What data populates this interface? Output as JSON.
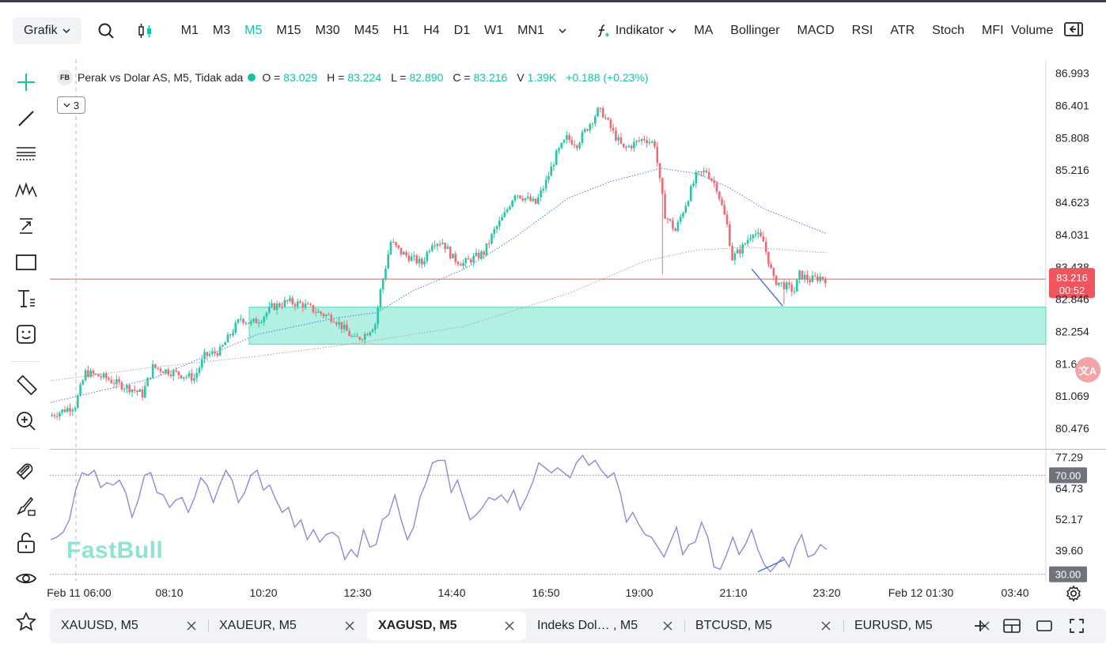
{
  "toolbar": {
    "chart_type_label": "Grafik",
    "timeframes": [
      "M1",
      "M3",
      "M5",
      "M15",
      "M30",
      "M45",
      "H1",
      "H4",
      "D1",
      "W1",
      "MN1"
    ],
    "active_timeframe": "M5",
    "indicator_label": "Indikator",
    "indicators": [
      "MA",
      "Bollinger",
      "MACD",
      "RSI",
      "ATR",
      "Stoch",
      "MFI"
    ],
    "overflow_item": "Volume"
  },
  "legend": {
    "badge": "FB",
    "symbol": "Perak vs Dolar AS, M5, Tidak ada",
    "o_label": "O =",
    "o_value": "83.029",
    "h_label": "H =",
    "h_value": "83.224",
    "l_label": "L =",
    "l_value": "82.890",
    "c_label": "C =",
    "c_value": "83.216",
    "v_label": "V",
    "v_value": "1.39K",
    "change": "+0.188 (+0.23%)",
    "collapsed_count": "3"
  },
  "price_badge": {
    "price": "83.216",
    "countdown": "00:52"
  },
  "watermark": "FastBull",
  "translate_badge": "文A",
  "chart_data": [
    {
      "type": "candlestick",
      "symbol": "Perak vs Dolar AS, M5",
      "y_ticks": [
        "86.993",
        "86.401",
        "85.808",
        "85.216",
        "84.623",
        "84.031",
        "83.438",
        "82.846",
        "82.254",
        "81.661",
        "81.069",
        "80.476"
      ],
      "ylim": [
        80.1,
        87.25
      ],
      "x_ticks": [
        "Feb 11 06:00",
        "08:10",
        "10:20",
        "12:30",
        "14:40",
        "16:50",
        "19:00",
        "21:10",
        "23:20",
        "Feb 12 01:30",
        "03:40"
      ],
      "last_price": 83.216,
      "support_zone": [
        82.02,
        82.7
      ],
      "price_path": [
        [
          0,
          80.7
        ],
        [
          10,
          80.9
        ],
        [
          14,
          81.5
        ],
        [
          22,
          81.4
        ],
        [
          26,
          81.3
        ],
        [
          32,
          81.2
        ],
        [
          36,
          81.1
        ],
        [
          40,
          81.6
        ],
        [
          48,
          81.5
        ],
        [
          56,
          81.4
        ],
        [
          60,
          81.8
        ],
        [
          66,
          81.9
        ],
        [
          70,
          82.2
        ],
        [
          74,
          82.5
        ],
        [
          78,
          82.4
        ],
        [
          82,
          82.5
        ],
        [
          86,
          82.7
        ],
        [
          92,
          82.8
        ],
        [
          98,
          82.75
        ],
        [
          104,
          82.6
        ],
        [
          110,
          82.5
        ],
        [
          114,
          82.3
        ],
        [
          118,
          82.1
        ],
        [
          122,
          82.2
        ],
        [
          126,
          82.4
        ],
        [
          128,
          83.0
        ],
        [
          132,
          83.9
        ],
        [
          136,
          83.7
        ],
        [
          140,
          83.6
        ],
        [
          144,
          83.5
        ],
        [
          148,
          83.9
        ],
        [
          152,
          83.9
        ],
        [
          156,
          83.6
        ],
        [
          160,
          83.5
        ],
        [
          164,
          83.6
        ],
        [
          168,
          83.7
        ],
        [
          172,
          84.1
        ],
        [
          176,
          84.4
        ],
        [
          180,
          84.8
        ],
        [
          184,
          84.7
        ],
        [
          188,
          84.6
        ],
        [
          192,
          85.0
        ],
        [
          196,
          85.5
        ],
        [
          200,
          85.8
        ],
        [
          204,
          85.7
        ],
        [
          208,
          86.0
        ],
        [
          212,
          86.3
        ],
        [
          214,
          86.25
        ],
        [
          218,
          85.9
        ],
        [
          222,
          85.6
        ],
        [
          226,
          85.7
        ],
        [
          230,
          85.8
        ],
        [
          234,
          85.7
        ],
        [
          236,
          85.0
        ],
        [
          238,
          84.4
        ],
        [
          242,
          84.1
        ],
        [
          246,
          84.6
        ],
        [
          250,
          85.1
        ],
        [
          254,
          85.2
        ],
        [
          258,
          84.9
        ],
        [
          262,
          84.2
        ],
        [
          264,
          83.6
        ],
        [
          268,
          83.8
        ],
        [
          272,
          84.1
        ],
        [
          276,
          83.9
        ],
        [
          280,
          83.2
        ],
        [
          284,
          83.1
        ],
        [
          288,
          83.0
        ],
        [
          290,
          83.3
        ],
        [
          294,
          83.2
        ],
        [
          298,
          83.25
        ],
        [
          300,
          83.216
        ]
      ],
      "series": [
        {
          "name": "",
          "style": "dotted-blue",
          "points": [
            [
              0,
              80.95
            ],
            [
              40,
              81.4
            ],
            [
              80,
              82.2
            ],
            [
              110,
              82.5
            ],
            [
              126,
              82.6
            ],
            [
              140,
              83.0
            ],
            [
              160,
              83.4
            ],
            [
              180,
              84.0
            ],
            [
              200,
              84.7
            ],
            [
              216,
              85.0
            ],
            [
              236,
              85.25
            ],
            [
              250,
              85.15
            ],
            [
              262,
              84.9
            ],
            [
              276,
              84.5
            ],
            [
              300,
              84.05
            ]
          ]
        },
        {
          "name": "",
          "style": "dotted-gray",
          "points": [
            [
              0,
              81.35
            ],
            [
              40,
              81.6
            ],
            [
              80,
              81.8
            ],
            [
              120,
              82.05
            ],
            [
              160,
              82.35
            ],
            [
              200,
              82.95
            ],
            [
              230,
              83.55
            ],
            [
              250,
              83.75
            ],
            [
              270,
              83.8
            ],
            [
              300,
              83.7
            ]
          ]
        }
      ],
      "trendline": [
        [
          271,
          83.4
        ],
        [
          283,
          82.72
        ]
      ]
    },
    {
      "type": "line",
      "indicator": "RSI",
      "y_ticks": [
        "77.29",
        "70.00",
        "64.73",
        "52.17",
        "39.60",
        "30.00"
      ],
      "ylim": [
        28,
        80
      ],
      "levels": [
        70,
        30
      ],
      "values": [
        44,
        45,
        47,
        52,
        64,
        71,
        70,
        72,
        65,
        67,
        66,
        68,
        63,
        53,
        60,
        70,
        71,
        63,
        62,
        57,
        60,
        61,
        55,
        61,
        69,
        66,
        59,
        66,
        72,
        68,
        59,
        63,
        70,
        72,
        64,
        66,
        60,
        55,
        57,
        49,
        52,
        44,
        48,
        43,
        46,
        47,
        45,
        36,
        40,
        37,
        48,
        41,
        42,
        52,
        54,
        62,
        52,
        44,
        49,
        61,
        67,
        75,
        76,
        76,
        63,
        68,
        60,
        52,
        54,
        57,
        61,
        60,
        62,
        59,
        64,
        56,
        61,
        67,
        75,
        73,
        71,
        73,
        71,
        69,
        75,
        78,
        74,
        76,
        72,
        69,
        71,
        63,
        51,
        55,
        50,
        46,
        45,
        41,
        37,
        43,
        49,
        38,
        42,
        43,
        51,
        45,
        33,
        32,
        38,
        45,
        38,
        42,
        48,
        40,
        34,
        31,
        34,
        37,
        33,
        41,
        46,
        37,
        38,
        42,
        40
      ]
    }
  ],
  "tabs": [
    {
      "label": "XAUUSD, M5"
    },
    {
      "label": "XAUEUR, M5"
    },
    {
      "label": "XAGUSD, M5"
    },
    {
      "label": "Indeks Dol…  , M5"
    },
    {
      "label": "BTCUSD, M5"
    },
    {
      "label": "EURUSD, M5"
    }
  ],
  "colors": {
    "up": "#26c6a6",
    "down": "#ef6b73",
    "accent": "#16c1a4",
    "zone": "#b3f0e4",
    "rsi": "#9a84d6",
    "price_line": "#e06560"
  }
}
